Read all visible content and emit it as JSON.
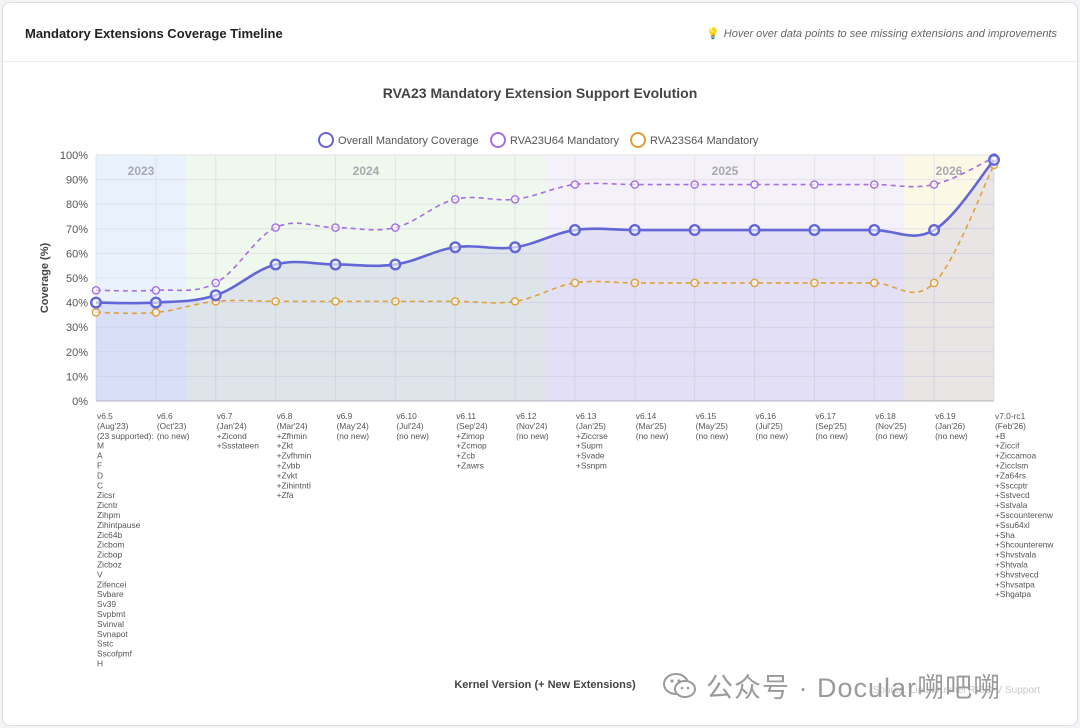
{
  "card": {
    "title": "Mandatory Extensions Coverage Timeline",
    "hint_icon": "lightbulb-icon",
    "hint": "Hover over data points to see missing extensions and improvements"
  },
  "chart_data": {
    "type": "line",
    "title": "RVA23 Mandatory Extension Support Evolution",
    "xlabel": "Kernel Version (+ New Extensions)",
    "ylabel": "Coverage (%)",
    "ylim": [
      0,
      100
    ],
    "yticks": [
      "0%",
      "10%",
      "20%",
      "30%",
      "40%",
      "50%",
      "60%",
      "70%",
      "80%",
      "90%",
      "100%"
    ],
    "year_bands": [
      {
        "label": "2023",
        "color": "#cfe0f8"
      },
      {
        "label": "2024",
        "color": "#d9f0d6"
      },
      {
        "label": "2025",
        "color": "#e8e0f6"
      },
      {
        "label": "2026",
        "color": "#f8f0c8"
      }
    ],
    "categories": [
      [
        "v6.5",
        "(Aug'23)",
        "(23 supported):",
        "M",
        "A",
        "F",
        "D",
        "C",
        "Zicsr",
        "Zicntr",
        "Zihpm",
        "Zihintpause",
        "Zic64b",
        "Zicbom",
        "Zicbop",
        "Zicboz",
        "V",
        "Zifencei",
        "Svbare",
        "Sv39",
        "Svpbmt",
        "Svinval",
        "Svnapot",
        "Sstc",
        "Sscofpmf",
        "H"
      ],
      [
        "v6.6",
        "(Oct'23)",
        "(no new)"
      ],
      [
        "v6.7",
        "(Jan'24)",
        "+Zicond",
        "+Ssstateen"
      ],
      [
        "v6.8",
        "(Mar'24)",
        "+Zfhmin",
        "+Zkt",
        "+Zvfhmin",
        "+Zvbb",
        "+Zvkt",
        "+Zihintntl",
        "+Zfa"
      ],
      [
        "v6.9",
        "(May'24)",
        "(no new)"
      ],
      [
        "v6.10",
        "(Jul'24)",
        "(no new)"
      ],
      [
        "v6.11",
        "(Sep'24)",
        "+Zimop",
        "+Zcmop",
        "+Zcb",
        "+Zawrs"
      ],
      [
        "v6.12",
        "(Nov'24)",
        "(no new)"
      ],
      [
        "v6.13",
        "(Jan'25)",
        "+Ziccrse",
        "+Supm",
        "+Svade",
        "+Ssnpm"
      ],
      [
        "v6.14",
        "(Mar'25)",
        "(no new)"
      ],
      [
        "v6.15",
        "(May'25)",
        "(no new)"
      ],
      [
        "v6.16",
        "(Jul'25)",
        "(no new)"
      ],
      [
        "v6.17",
        "(Sep'25)",
        "(no new)"
      ],
      [
        "v6.18",
        "(Nov'25)",
        "(no new)"
      ],
      [
        "v6.19",
        "(Jan'26)",
        "(no new)"
      ],
      [
        "v7.0-rc1",
        "(Feb'26)",
        "+B",
        "+Ziccif",
        "+Ziccamoa",
        "+Zicclsm",
        "+Za64rs",
        "+Ssccptr",
        "+Sstvecd",
        "+Sstvala",
        "+Sscounterenw",
        "+Ssu64xl",
        "+Sha",
        "+Shcounterenw",
        "+Shvstvala",
        "+Shtvala",
        "+Shvstvecd",
        "+Shvsatpa",
        "+Shgatpa"
      ]
    ],
    "series": [
      {
        "name": "Overall Mandatory Coverage",
        "color": "#6366d6",
        "dashed": false,
        "values": [
          40,
          40,
          43,
          55.5,
          55.5,
          55.5,
          62.5,
          62.5,
          69.5,
          69.5,
          69.5,
          69.5,
          69.5,
          69.5,
          69.5,
          98
        ]
      },
      {
        "name": "RVA23U64 Mandatory",
        "color": "#a66ee0",
        "dashed": true,
        "values": [
          45,
          45,
          48,
          70.5,
          70.5,
          70.5,
          82,
          82,
          88,
          88,
          88,
          88,
          88,
          88,
          88,
          99
        ]
      },
      {
        "name": "RVA23S64 Mandatory",
        "color": "#e0a038",
        "dashed": true,
        "values": [
          36,
          36,
          40.5,
          40.5,
          40.5,
          40.5,
          40.5,
          40.5,
          48,
          48,
          48,
          48,
          48,
          48,
          48,
          96
        ]
      }
    ]
  },
  "watermark": {
    "icon": "wechat-icon",
    "text": "公众号 · Docular嗍吧嗍",
    "source": "Source: Linux Kernel RISC-V Support"
  }
}
